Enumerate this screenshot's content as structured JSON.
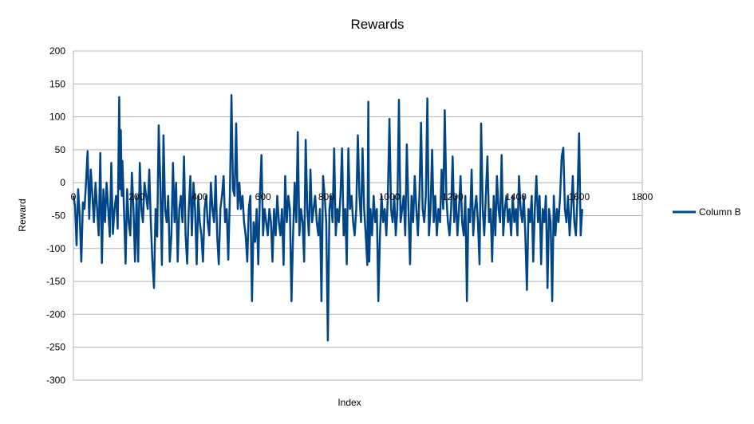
{
  "chart_data": {
    "type": "line",
    "title": "Rewards",
    "xlabel": "Index",
    "ylabel": "Reward",
    "xlim": [
      0,
      1800
    ],
    "ylim": [
      -300,
      200
    ],
    "x_ticks": [
      0,
      200,
      400,
      600,
      800,
      1000,
      1200,
      1400,
      1600,
      1800
    ],
    "y_ticks": [
      200,
      150,
      100,
      50,
      0,
      -50,
      -100,
      -150,
      -200,
      -250,
      -300
    ],
    "grid": true,
    "legend_position": "right",
    "series": [
      {
        "name": "Column B",
        "color": "#004586",
        "points": [
          [
            0,
            -20
          ],
          [
            5,
            -35
          ],
          [
            10,
            -95
          ],
          [
            15,
            -10
          ],
          [
            20,
            -50
          ],
          [
            25,
            -120
          ],
          [
            30,
            -30
          ],
          [
            35,
            -40
          ],
          [
            40,
            0
          ],
          [
            45,
            48
          ],
          [
            50,
            -55
          ],
          [
            55,
            20
          ],
          [
            60,
            -20
          ],
          [
            65,
            -60
          ],
          [
            70,
            0
          ],
          [
            75,
            -40
          ],
          [
            80,
            -80
          ],
          [
            85,
            45
          ],
          [
            90,
            -122
          ],
          [
            95,
            -10
          ],
          [
            100,
            -60
          ],
          [
            105,
            0
          ],
          [
            110,
            -40
          ],
          [
            115,
            -82
          ],
          [
            120,
            30
          ],
          [
            125,
            -78
          ],
          [
            130,
            -40
          ],
          [
            135,
            -20
          ],
          [
            140,
            -70
          ],
          [
            145,
            130
          ],
          [
            148,
            -10
          ],
          [
            150,
            80
          ],
          [
            153,
            -20
          ],
          [
            155,
            33
          ],
          [
            160,
            -40
          ],
          [
            165,
            -123
          ],
          [
            170,
            -10
          ],
          [
            175,
            -60
          ],
          [
            180,
            -80
          ],
          [
            185,
            15
          ],
          [
            190,
            -40
          ],
          [
            195,
            -120
          ],
          [
            200,
            -20
          ],
          [
            205,
            -120
          ],
          [
            210,
            30
          ],
          [
            215,
            -40
          ],
          [
            220,
            -60
          ],
          [
            225,
            0
          ],
          [
            230,
            -20
          ],
          [
            235,
            -40
          ],
          [
            240,
            20
          ],
          [
            245,
            -60
          ],
          [
            250,
            -120
          ],
          [
            255,
            -160
          ],
          [
            260,
            -40
          ],
          [
            265,
            -82
          ],
          [
            270,
            87
          ],
          [
            275,
            0
          ],
          [
            280,
            -125
          ],
          [
            285,
            72
          ],
          [
            290,
            -40
          ],
          [
            295,
            -60
          ],
          [
            300,
            -20
          ],
          [
            305,
            -120
          ],
          [
            310,
            -80
          ],
          [
            315,
            30
          ],
          [
            320,
            -60
          ],
          [
            325,
            0
          ],
          [
            330,
            -120
          ],
          [
            335,
            -40
          ],
          [
            340,
            -20
          ],
          [
            345,
            -60
          ],
          [
            350,
            40
          ],
          [
            355,
            -80
          ],
          [
            360,
            -123
          ],
          [
            365,
            -40
          ],
          [
            370,
            10
          ],
          [
            375,
            -80
          ],
          [
            380,
            0
          ],
          [
            385,
            -40
          ],
          [
            390,
            -124
          ],
          [
            395,
            -20
          ],
          [
            400,
            -60
          ],
          [
            405,
            -80
          ],
          [
            410,
            -120
          ],
          [
            415,
            -40
          ],
          [
            420,
            -20
          ],
          [
            425,
            -60
          ],
          [
            430,
            -80
          ],
          [
            435,
            0
          ],
          [
            440,
            -40
          ],
          [
            445,
            -60
          ],
          [
            450,
            10
          ],
          [
            455,
            -80
          ],
          [
            460,
            -124
          ],
          [
            465,
            -40
          ],
          [
            470,
            -20
          ],
          [
            475,
            10
          ],
          [
            480,
            -60
          ],
          [
            485,
            -40
          ],
          [
            490,
            -117
          ],
          [
            495,
            -20
          ],
          [
            500,
            133
          ],
          [
            505,
            -10
          ],
          [
            510,
            -20
          ],
          [
            515,
            90
          ],
          [
            520,
            -40
          ],
          [
            525,
            0
          ],
          [
            530,
            -40
          ],
          [
            535,
            -20
          ],
          [
            540,
            -60
          ],
          [
            545,
            -80
          ],
          [
            550,
            -120
          ],
          [
            555,
            -40
          ],
          [
            560,
            -20
          ],
          [
            565,
            -180
          ],
          [
            570,
            -60
          ],
          [
            575,
            -90
          ],
          [
            580,
            -40
          ],
          [
            585,
            -124
          ],
          [
            590,
            -20
          ],
          [
            595,
            42
          ],
          [
            600,
            -80
          ],
          [
            605,
            -40
          ],
          [
            610,
            -60
          ],
          [
            615,
            -80
          ],
          [
            620,
            -40
          ],
          [
            625,
            -60
          ],
          [
            630,
            -120
          ],
          [
            635,
            -40
          ],
          [
            640,
            -80
          ],
          [
            645,
            -20
          ],
          [
            650,
            -60
          ],
          [
            655,
            -80
          ],
          [
            660,
            -40
          ],
          [
            665,
            -125
          ],
          [
            670,
            10
          ],
          [
            675,
            -60
          ],
          [
            680,
            -20
          ],
          [
            685,
            -40
          ],
          [
            690,
            -180
          ],
          [
            695,
            -80
          ],
          [
            700,
            0
          ],
          [
            705,
            -60
          ],
          [
            710,
            77
          ],
          [
            715,
            -80
          ],
          [
            720,
            -40
          ],
          [
            725,
            -60
          ],
          [
            730,
            -120
          ],
          [
            735,
            65
          ],
          [
            740,
            -40
          ],
          [
            745,
            -80
          ],
          [
            750,
            20
          ],
          [
            755,
            -60
          ],
          [
            760,
            -40
          ],
          [
            765,
            -20
          ],
          [
            770,
            -60
          ],
          [
            775,
            -80
          ],
          [
            780,
            -40
          ],
          [
            785,
            -180
          ],
          [
            790,
            10
          ],
          [
            795,
            -20
          ],
          [
            800,
            -60
          ],
          [
            805,
            -240
          ],
          [
            810,
            -40
          ],
          [
            815,
            -20
          ],
          [
            820,
            -60
          ],
          [
            825,
            52
          ],
          [
            830,
            -80
          ],
          [
            835,
            -40
          ],
          [
            840,
            -60
          ],
          [
            845,
            -20
          ],
          [
            850,
            52
          ],
          [
            855,
            -80
          ],
          [
            860,
            -40
          ],
          [
            865,
            -124
          ],
          [
            870,
            52
          ],
          [
            875,
            -40
          ],
          [
            880,
            -20
          ],
          [
            885,
            -60
          ],
          [
            890,
            -80
          ],
          [
            895,
            -40
          ],
          [
            900,
            72
          ],
          [
            905,
            -20
          ],
          [
            910,
            -60
          ],
          [
            915,
            52
          ],
          [
            920,
            -40
          ],
          [
            925,
            -80
          ],
          [
            930,
            -125
          ],
          [
            933,
            123
          ],
          [
            936,
            -120
          ],
          [
            940,
            -40
          ],
          [
            945,
            -80
          ],
          [
            950,
            -20
          ],
          [
            955,
            -60
          ],
          [
            960,
            -40
          ],
          [
            965,
            -180
          ],
          [
            970,
            -80
          ],
          [
            975,
            -20
          ],
          [
            980,
            -60
          ],
          [
            985,
            -40
          ],
          [
            990,
            -80
          ],
          [
            995,
            -20
          ],
          [
            1000,
            97
          ],
          [
            1005,
            -40
          ],
          [
            1010,
            -60
          ],
          [
            1015,
            -20
          ],
          [
            1020,
            -80
          ],
          [
            1025,
            -40
          ],
          [
            1030,
            126
          ],
          [
            1035,
            -60
          ],
          [
            1040,
            -40
          ],
          [
            1045,
            -20
          ],
          [
            1050,
            -80
          ],
          [
            1055,
            58
          ],
          [
            1060,
            -40
          ],
          [
            1065,
            -124
          ],
          [
            1070,
            -20
          ],
          [
            1075,
            -60
          ],
          [
            1080,
            10
          ],
          [
            1085,
            -40
          ],
          [
            1090,
            -80
          ],
          [
            1095,
            -20
          ],
          [
            1100,
            91
          ],
          [
            1105,
            -40
          ],
          [
            1110,
            -60
          ],
          [
            1115,
            -20
          ],
          [
            1120,
            128
          ],
          [
            1125,
            -80
          ],
          [
            1130,
            -40
          ],
          [
            1135,
            50
          ],
          [
            1140,
            -60
          ],
          [
            1145,
            -20
          ],
          [
            1150,
            -80
          ],
          [
            1155,
            -40
          ],
          [
            1160,
            -60
          ],
          [
            1165,
            20
          ],
          [
            1170,
            -40
          ],
          [
            1175,
            110
          ],
          [
            1180,
            -20
          ],
          [
            1185,
            -60
          ],
          [
            1190,
            -80
          ],
          [
            1195,
            -40
          ],
          [
            1200,
            40
          ],
          [
            1205,
            -60
          ],
          [
            1210,
            -20
          ],
          [
            1215,
            -80
          ],
          [
            1220,
            -40
          ],
          [
            1225,
            10
          ],
          [
            1230,
            -60
          ],
          [
            1235,
            -80
          ],
          [
            1240,
            -20
          ],
          [
            1245,
            -180
          ],
          [
            1250,
            -40
          ],
          [
            1255,
            -60
          ],
          [
            1260,
            20
          ],
          [
            1265,
            -80
          ],
          [
            1270,
            -40
          ],
          [
            1275,
            -20
          ],
          [
            1280,
            -60
          ],
          [
            1285,
            -124
          ],
          [
            1290,
            90
          ],
          [
            1295,
            -40
          ],
          [
            1300,
            -80
          ],
          [
            1305,
            -20
          ],
          [
            1310,
            40
          ],
          [
            1315,
            -60
          ],
          [
            1320,
            -40
          ],
          [
            1325,
            -120
          ],
          [
            1330,
            -20
          ],
          [
            1335,
            -80
          ],
          [
            1340,
            10
          ],
          [
            1345,
            -40
          ],
          [
            1350,
            -60
          ],
          [
            1355,
            42
          ],
          [
            1360,
            -80
          ],
          [
            1365,
            -40
          ],
          [
            1370,
            -20
          ],
          [
            1375,
            -60
          ],
          [
            1380,
            -40
          ],
          [
            1385,
            -80
          ],
          [
            1390,
            -20
          ],
          [
            1395,
            -60
          ],
          [
            1400,
            -40
          ],
          [
            1405,
            -80
          ],
          [
            1410,
            10
          ],
          [
            1415,
            -40
          ],
          [
            1420,
            -60
          ],
          [
            1425,
            -20
          ],
          [
            1430,
            -80
          ],
          [
            1435,
            -163
          ],
          [
            1440,
            -40
          ],
          [
            1445,
            -60
          ],
          [
            1450,
            -20
          ],
          [
            1455,
            -120
          ],
          [
            1460,
            -40
          ],
          [
            1465,
            10
          ],
          [
            1470,
            -60
          ],
          [
            1475,
            -20
          ],
          [
            1480,
            -124
          ],
          [
            1485,
            -40
          ],
          [
            1490,
            -60
          ],
          [
            1495,
            -20
          ],
          [
            1500,
            -160
          ],
          [
            1505,
            -40
          ],
          [
            1510,
            -60
          ],
          [
            1515,
            -180
          ],
          [
            1520,
            -20
          ],
          [
            1525,
            -80
          ],
          [
            1530,
            -40
          ],
          [
            1535,
            -60
          ],
          [
            1540,
            -20
          ],
          [
            1545,
            40
          ],
          [
            1550,
            53
          ],
          [
            1555,
            -40
          ],
          [
            1560,
            -60
          ],
          [
            1565,
            -20
          ],
          [
            1570,
            -80
          ],
          [
            1575,
            -40
          ],
          [
            1580,
            10
          ],
          [
            1585,
            -60
          ],
          [
            1590,
            -80
          ],
          [
            1595,
            -20
          ],
          [
            1600,
            75
          ],
          [
            1605,
            -80
          ],
          [
            1610,
            -40
          ]
        ]
      }
    ]
  }
}
